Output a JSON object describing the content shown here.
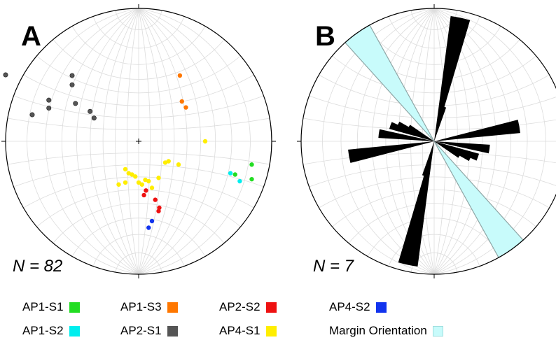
{
  "chart_data": [
    {
      "type": "scatter",
      "projection": "stereonet",
      "panel_label": "A",
      "n_label": "N = 82",
      "series": [
        {
          "name": "AP1-S1",
          "color": "#22dd22",
          "points": [
            [
              1.7,
              0.35
            ],
            [
              1.7,
              0.57
            ],
            [
              1.45,
              0.5
            ]
          ]
        },
        {
          "name": "AP1-S2",
          "color": "#00eeee",
          "points": [
            [
              1.38,
              0.48
            ],
            [
              1.52,
              0.6
            ]
          ]
        },
        {
          "name": "AP1-S3",
          "color": "#ff7700",
          "points": [
            [
              0.62,
              -0.99
            ],
            [
              0.65,
              -0.6
            ],
            [
              0.71,
              -0.51
            ]
          ]
        },
        {
          "name": "AP2-S1",
          "color": "#555555",
          "points": [
            [
              -2.0,
              -1.0
            ],
            [
              -1.6,
              -0.4
            ],
            [
              -1.35,
              -0.5
            ],
            [
              -1.35,
              -0.62
            ],
            [
              -1.0,
              -0.85
            ],
            [
              -1.0,
              -0.99
            ],
            [
              -0.95,
              -0.57
            ],
            [
              -0.73,
              -0.45
            ],
            [
              -0.67,
              -0.35
            ]
          ]
        },
        {
          "name": "AP2-S2",
          "color": "#ee1111",
          "points": [
            [
              0.08,
              0.81
            ],
            [
              0.11,
              0.74
            ],
            [
              0.25,
              0.88
            ],
            [
              0.3,
              1.05
            ],
            [
              0.31,
              1.0
            ]
          ]
        },
        {
          "name": "AP4-S1",
          "color": "#ffee00",
          "points": [
            [
              1.0,
              0.0
            ],
            [
              0.6,
              0.35
            ],
            [
              0.45,
              0.3
            ],
            [
              0.3,
              0.55
            ],
            [
              0.15,
              0.6
            ],
            [
              0.05,
              0.65
            ],
            [
              -0.05,
              0.53
            ],
            [
              -0.1,
              0.5
            ],
            [
              -0.15,
              0.48
            ],
            [
              -0.2,
              0.42
            ],
            [
              0.4,
              0.32
            ],
            [
              0.2,
              0.7
            ],
            [
              0.1,
              0.58
            ],
            [
              0.0,
              0.62
            ],
            [
              -0.2,
              0.62
            ],
            [
              -0.3,
              0.65
            ]
          ]
        },
        {
          "name": "AP4-S2",
          "color": "#1133ee",
          "points": [
            [
              0.15,
              1.3
            ],
            [
              0.2,
              1.2
            ]
          ]
        }
      ]
    },
    {
      "type": "rose",
      "panel_label": "B",
      "n_label": "N = 7",
      "petals": [
        {
          "azimuth": 12,
          "length": 0.95
        },
        {
          "azimuth": 80,
          "length": 0.65
        },
        {
          "azimuth": 98,
          "length": 0.42
        },
        {
          "azimuth": 115,
          "length": 0.3
        },
        {
          "azimuth": 15,
          "length": 0.27
        },
        {
          "azimuth": 290,
          "length": 0.35
        },
        {
          "azimuth": 300,
          "length": 0.22
        }
      ],
      "series": [
        {
          "name": "Margin Orientation",
          "color": "#c8fbfb",
          "sector_azimuths": [
            [
              318,
              331
            ]
          ]
        }
      ]
    }
  ]
}
